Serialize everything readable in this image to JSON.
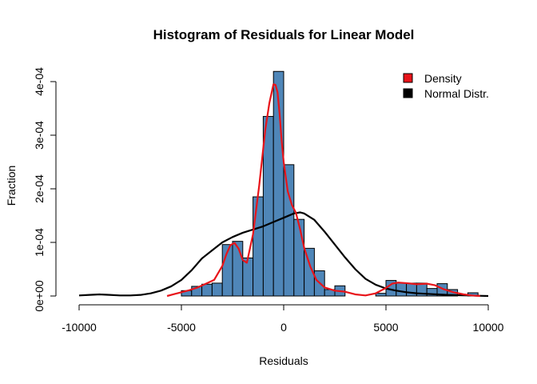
{
  "chart_data": {
    "type": "histogram",
    "title": "Histogram of Residuals for Linear Model",
    "xlabel": "Residuals",
    "ylabel": "Fraction",
    "xlim": [
      -10000,
      10000
    ],
    "ylim": [
      0,
      0.0004
    ],
    "x_ticks": [
      -10000,
      -5000,
      0,
      5000,
      10000
    ],
    "x_tick_labels": [
      "-10000",
      "-5000",
      "0",
      "5000",
      "10000"
    ],
    "y_ticks": [
      0,
      0.0001,
      0.0002,
      0.0003,
      0.0004
    ],
    "y_tick_labels": [
      "0e+00",
      "1e-04",
      "2e-04",
      "3e-04",
      "4e-04"
    ],
    "bar_color": "#4F86B8",
    "bins": [
      {
        "x0": -5000,
        "x1": -4500,
        "value": 1e-05
      },
      {
        "x0": -4500,
        "x1": -4000,
        "value": 1.8e-05
      },
      {
        "x0": -4000,
        "x1": -3500,
        "value": 2.2e-05
      },
      {
        "x0": -3500,
        "x1": -3000,
        "value": 2.4e-05
      },
      {
        "x0": -3000,
        "x1": -2500,
        "value": 9.6e-05
      },
      {
        "x0": -2500,
        "x1": -2000,
        "value": 0.000102
      },
      {
        "x0": -2000,
        "x1": -1500,
        "value": 7.1e-05
      },
      {
        "x0": -1500,
        "x1": -1000,
        "value": 0.000185
      },
      {
        "x0": -1000,
        "x1": -500,
        "value": 0.000335
      },
      {
        "x0": -500,
        "x1": 0,
        "value": 0.000419
      },
      {
        "x0": 0,
        "x1": 500,
        "value": 0.000245
      },
      {
        "x0": 500,
        "x1": 1000,
        "value": 0.000143
      },
      {
        "x0": 1000,
        "x1": 1500,
        "value": 8.9e-05
      },
      {
        "x0": 1500,
        "x1": 2000,
        "value": 4.7e-05
      },
      {
        "x0": 2000,
        "x1": 2500,
        "value": 1.2e-05
      },
      {
        "x0": 2500,
        "x1": 3000,
        "value": 1.9e-05
      },
      {
        "x0": 3000,
        "x1": 3500,
        "value": 0
      },
      {
        "x0": 3500,
        "x1": 4000,
        "value": 0
      },
      {
        "x0": 4000,
        "x1": 4500,
        "value": 0
      },
      {
        "x0": 4500,
        "x1": 5000,
        "value": 5e-06
      },
      {
        "x0": 5000,
        "x1": 5500,
        "value": 2.9e-05
      },
      {
        "x0": 5500,
        "x1": 6000,
        "value": 2.4e-05
      },
      {
        "x0": 6000,
        "x1": 6500,
        "value": 2.4e-05
      },
      {
        "x0": 6500,
        "x1": 7000,
        "value": 2.4e-05
      },
      {
        "x0": 7000,
        "x1": 7500,
        "value": 1.4e-05
      },
      {
        "x0": 7500,
        "x1": 8000,
        "value": 2.3e-05
      },
      {
        "x0": 8000,
        "x1": 8500,
        "value": 1.2e-05
      },
      {
        "x0": 8500,
        "x1": 9000,
        "value": 0
      },
      {
        "x0": 9000,
        "x1": 9500,
        "value": 6e-06
      }
    ],
    "series": [
      {
        "name": "Density",
        "color": "#E8141A",
        "x": [
          -5700,
          -5400,
          -5000,
          -4600,
          -4200,
          -3800,
          -3400,
          -3000,
          -2800,
          -2600,
          -2400,
          -2200,
          -2000,
          -1800,
          -1500,
          -1200,
          -900,
          -700,
          -500,
          -400,
          -300,
          -200,
          -100,
          0,
          200,
          400,
          600,
          800,
          1000,
          1300,
          1600,
          2000,
          2500,
          3000,
          3500,
          4000,
          4500,
          5000,
          5300,
          5600,
          6000,
          6500,
          7000,
          7400,
          7800,
          8300,
          8800,
          9200,
          9600
        ],
        "y": [
          0,
          3e-06,
          7e-06,
          1.1e-05,
          1.6e-05,
          2.3e-05,
          3e-05,
          5.6e-05,
          7.8e-05,
          9.5e-05,
          9.9e-05,
          8.8e-05,
          6.7e-05,
          6.2e-05,
          0.000115,
          0.000205,
          0.00031,
          0.00036,
          0.000395,
          0.000394,
          0.00038,
          0.00034,
          0.00029,
          0.00025,
          0.000195,
          0.00017,
          0.000155,
          0.000125,
          9e-05,
          5.5e-05,
          3e-05,
          1.6e-05,
          1e-05,
          8e-06,
          3e-06,
          1e-06,
          5e-06,
          1.5e-05,
          2.3e-05,
          2.5e-05,
          2.4e-05,
          2.2e-05,
          2.3e-05,
          2e-05,
          1.3e-05,
          7e-06,
          3e-06,
          1e-06,
          0
        ]
      },
      {
        "name": "Normal Distr.",
        "color": "#000000",
        "x": [
          -10000,
          -9500,
          -9000,
          -8500,
          -8000,
          -7500,
          -7000,
          -6500,
          -6000,
          -5500,
          -5000,
          -4500,
          -4000,
          -3500,
          -3000,
          -2500,
          -2000,
          -1500,
          -1000,
          -500,
          0,
          500,
          800,
          1000,
          1500,
          2000,
          2500,
          3000,
          3500,
          4000,
          4500,
          5000,
          5500,
          6000,
          6500,
          7000,
          7500,
          8000,
          8500,
          9000,
          9500,
          10000
        ],
        "y": [
          1e-06,
          2e-06,
          3e-06,
          2e-06,
          1e-06,
          1e-06,
          2e-06,
          5e-06,
          1e-05,
          1.8e-05,
          3e-05,
          4.8e-05,
          7e-05,
          8.5e-05,
          0.0001,
          0.00011,
          0.000118,
          0.000124,
          0.00013,
          0.000138,
          0.000146,
          0.000154,
          0.000156,
          0.000154,
          0.000142,
          0.00012,
          9.6e-05,
          7.2e-05,
          5e-05,
          3.2e-05,
          2.1e-05,
          1.4e-05,
          1e-05,
          7e-06,
          5e-06,
          4e-06,
          3e-06,
          2e-06,
          1.5e-06,
          1e-06,
          5e-07,
          0
        ]
      }
    ],
    "legend": {
      "placement": "top-right",
      "entries": [
        {
          "label": "Density",
          "color": "#E8141A"
        },
        {
          "label": "Normal Distr.",
          "color": "#000000"
        }
      ]
    }
  }
}
